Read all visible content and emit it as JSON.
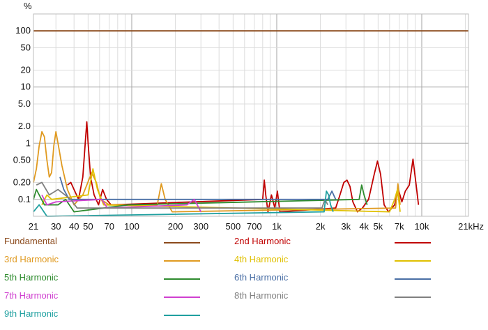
{
  "chart_data": {
    "type": "line",
    "title": "",
    "xlabel": "",
    "ylabel": "%",
    "x_scale": "log",
    "y_scale": "log",
    "xlim": [
      21,
      21000
    ],
    "ylim": [
      0.05,
      200
    ],
    "grid": true,
    "x_tick_labels": [
      {
        "v": 21,
        "label": "21"
      },
      {
        "v": 30,
        "label": "30"
      },
      {
        "v": 40,
        "label": "40"
      },
      {
        "v": 50,
        "label": "50"
      },
      {
        "v": 70,
        "label": "70"
      },
      {
        "v": 100,
        "label": "100"
      },
      {
        "v": 200,
        "label": "200"
      },
      {
        "v": 300,
        "label": "300"
      },
      {
        "v": 500,
        "label": "500"
      },
      {
        "v": 700,
        "label": "700"
      },
      {
        "v": 1000,
        "label": "1k"
      },
      {
        "v": 2000,
        "label": "2k"
      },
      {
        "v": 3000,
        "label": "3k"
      },
      {
        "v": 4000,
        "label": "4k"
      },
      {
        "v": 5000,
        "label": "5k"
      },
      {
        "v": 7000,
        "label": "7k"
      },
      {
        "v": 10000,
        "label": "10k"
      },
      {
        "v": 21000,
        "label": "21kHz"
      }
    ],
    "y_tick_labels": [
      {
        "v": 100,
        "label": "100"
      },
      {
        "v": 50,
        "label": "50"
      },
      {
        "v": 20,
        "label": "20"
      },
      {
        "v": 10,
        "label": "10"
      },
      {
        "v": 5,
        "label": "5.0"
      },
      {
        "v": 2,
        "label": "2.0"
      },
      {
        "v": 1,
        "label": "1"
      },
      {
        "v": 0.5,
        "label": "0.50"
      },
      {
        "v": 0.2,
        "label": "0.20"
      },
      {
        "v": 0.1,
        "label": "0.1"
      }
    ],
    "series": [
      {
        "name": "Fundamental",
        "color": "#8b4a1c",
        "points": [
          [
            21,
            100
          ],
          [
            21000,
            100
          ]
        ]
      },
      {
        "name": "2nd Harmonic",
        "color": "#c00000",
        "points": [
          [
            36,
            0.18
          ],
          [
            38,
            0.2
          ],
          [
            40,
            0.15
          ],
          [
            43,
            0.1
          ],
          [
            46,
            0.25
          ],
          [
            48,
            1.2
          ],
          [
            49,
            2.4
          ],
          [
            50,
            1.0
          ],
          [
            52,
            0.25
          ],
          [
            55,
            0.12
          ],
          [
            59,
            0.08
          ],
          [
            63,
            0.15
          ],
          [
            67,
            0.1
          ],
          [
            72,
            0.08
          ],
          [
            800,
            0.1
          ],
          [
            820,
            0.22
          ],
          [
            840,
            0.12
          ],
          [
            870,
            0.06
          ],
          [
            920,
            0.12
          ],
          [
            970,
            0.07
          ],
          [
            1010,
            0.14
          ],
          [
            1050,
            0.06
          ],
          [
            2550,
            0.07
          ],
          [
            2700,
            0.11
          ],
          [
            2900,
            0.2
          ],
          [
            3050,
            0.22
          ],
          [
            3200,
            0.17
          ],
          [
            3350,
            0.09
          ],
          [
            3600,
            0.06
          ],
          [
            3900,
            0.07
          ],
          [
            4300,
            0.1
          ],
          [
            4700,
            0.28
          ],
          [
            4950,
            0.48
          ],
          [
            5200,
            0.28
          ],
          [
            5500,
            0.08
          ],
          [
            5900,
            0.06
          ],
          [
            6500,
            0.08
          ],
          [
            6900,
            0.15
          ],
          [
            7300,
            0.09
          ],
          [
            7700,
            0.14
          ],
          [
            8200,
            0.18
          ],
          [
            8700,
            0.52
          ],
          [
            9100,
            0.2
          ],
          [
            9500,
            0.08
          ]
        ]
      },
      {
        "name": "3rd Harmonic",
        "color": "#e09a20",
        "points": [
          [
            21,
            0.2
          ],
          [
            22,
            0.35
          ],
          [
            23,
            0.9
          ],
          [
            24,
            1.6
          ],
          [
            25,
            1.3
          ],
          [
            26,
            0.5
          ],
          [
            27,
            0.25
          ],
          [
            28,
            0.3
          ],
          [
            29,
            0.9
          ],
          [
            30,
            1.6
          ],
          [
            31,
            1.0
          ],
          [
            33,
            0.4
          ],
          [
            36,
            0.15
          ],
          [
            40,
            0.08
          ],
          [
            46,
            0.12
          ],
          [
            53,
            0.3
          ],
          [
            57,
            0.2
          ],
          [
            61,
            0.1
          ],
          [
            70,
            0.08
          ],
          [
            150,
            0.08
          ],
          [
            160,
            0.19
          ],
          [
            170,
            0.1
          ],
          [
            190,
            0.06
          ],
          [
            6600,
            0.07
          ],
          [
            6850,
            0.19
          ],
          [
            7100,
            0.08
          ]
        ]
      },
      {
        "name": "4th Harmonic",
        "color": "#e0c000",
        "points": [
          [
            24,
            0.08
          ],
          [
            26,
            0.12
          ],
          [
            28,
            0.1
          ],
          [
            50,
            0.12
          ],
          [
            54,
            0.35
          ],
          [
            58,
            0.15
          ],
          [
            64,
            0.08
          ],
          [
            6000,
            0.06
          ],
          [
            6500,
            0.1
          ],
          [
            6800,
            0.15
          ],
          [
            7100,
            0.06
          ]
        ]
      },
      {
        "name": "5th Harmonic",
        "color": "#2e8b2e",
        "points": [
          [
            21,
            0.1
          ],
          [
            22,
            0.15
          ],
          [
            23,
            0.12
          ],
          [
            25,
            0.08
          ],
          [
            31,
            0.08
          ],
          [
            35,
            0.1
          ],
          [
            40,
            0.06
          ],
          [
            95,
            0.08
          ],
          [
            3700,
            0.1
          ],
          [
            3850,
            0.18
          ],
          [
            4000,
            0.12
          ],
          [
            4200,
            0.08
          ]
        ]
      },
      {
        "name": "6th Harmonic",
        "color": "#4a6fa5",
        "points": [
          [
            32,
            0.25
          ],
          [
            34,
            0.15
          ],
          [
            37,
            0.1
          ],
          [
            2250,
            0.1
          ],
          [
            2400,
            0.14
          ],
          [
            2550,
            0.1
          ]
        ]
      },
      {
        "name": "7th Harmonic",
        "color": "#d040d0",
        "points": [
          [
            24,
            0.12
          ],
          [
            26,
            0.08
          ],
          [
            30,
            0.09
          ],
          [
            62,
            0.1
          ],
          [
            68,
            0.07
          ],
          [
            240,
            0.08
          ],
          [
            270,
            0.1
          ],
          [
            300,
            0.06
          ]
        ]
      },
      {
        "name": "8th Harmonic",
        "color": "#808080",
        "points": [
          [
            22,
            0.18
          ],
          [
            24,
            0.2
          ],
          [
            27,
            0.12
          ],
          [
            31,
            0.15
          ],
          [
            38,
            0.1
          ],
          [
            42,
            0.07
          ],
          [
            2050,
            0.07
          ],
          [
            2150,
            0.1
          ],
          [
            2250,
            0.08
          ]
        ]
      },
      {
        "name": "9th Harmonic",
        "color": "#20a0a0",
        "points": [
          [
            21,
            0.06
          ],
          [
            23,
            0.08
          ],
          [
            26,
            0.05
          ],
          [
            2120,
            0.06
          ],
          [
            2200,
            0.14
          ],
          [
            2280,
            0.12
          ],
          [
            2350,
            0.08
          ],
          [
            2450,
            0.06
          ]
        ]
      }
    ],
    "legend_placement": "bottom"
  }
}
